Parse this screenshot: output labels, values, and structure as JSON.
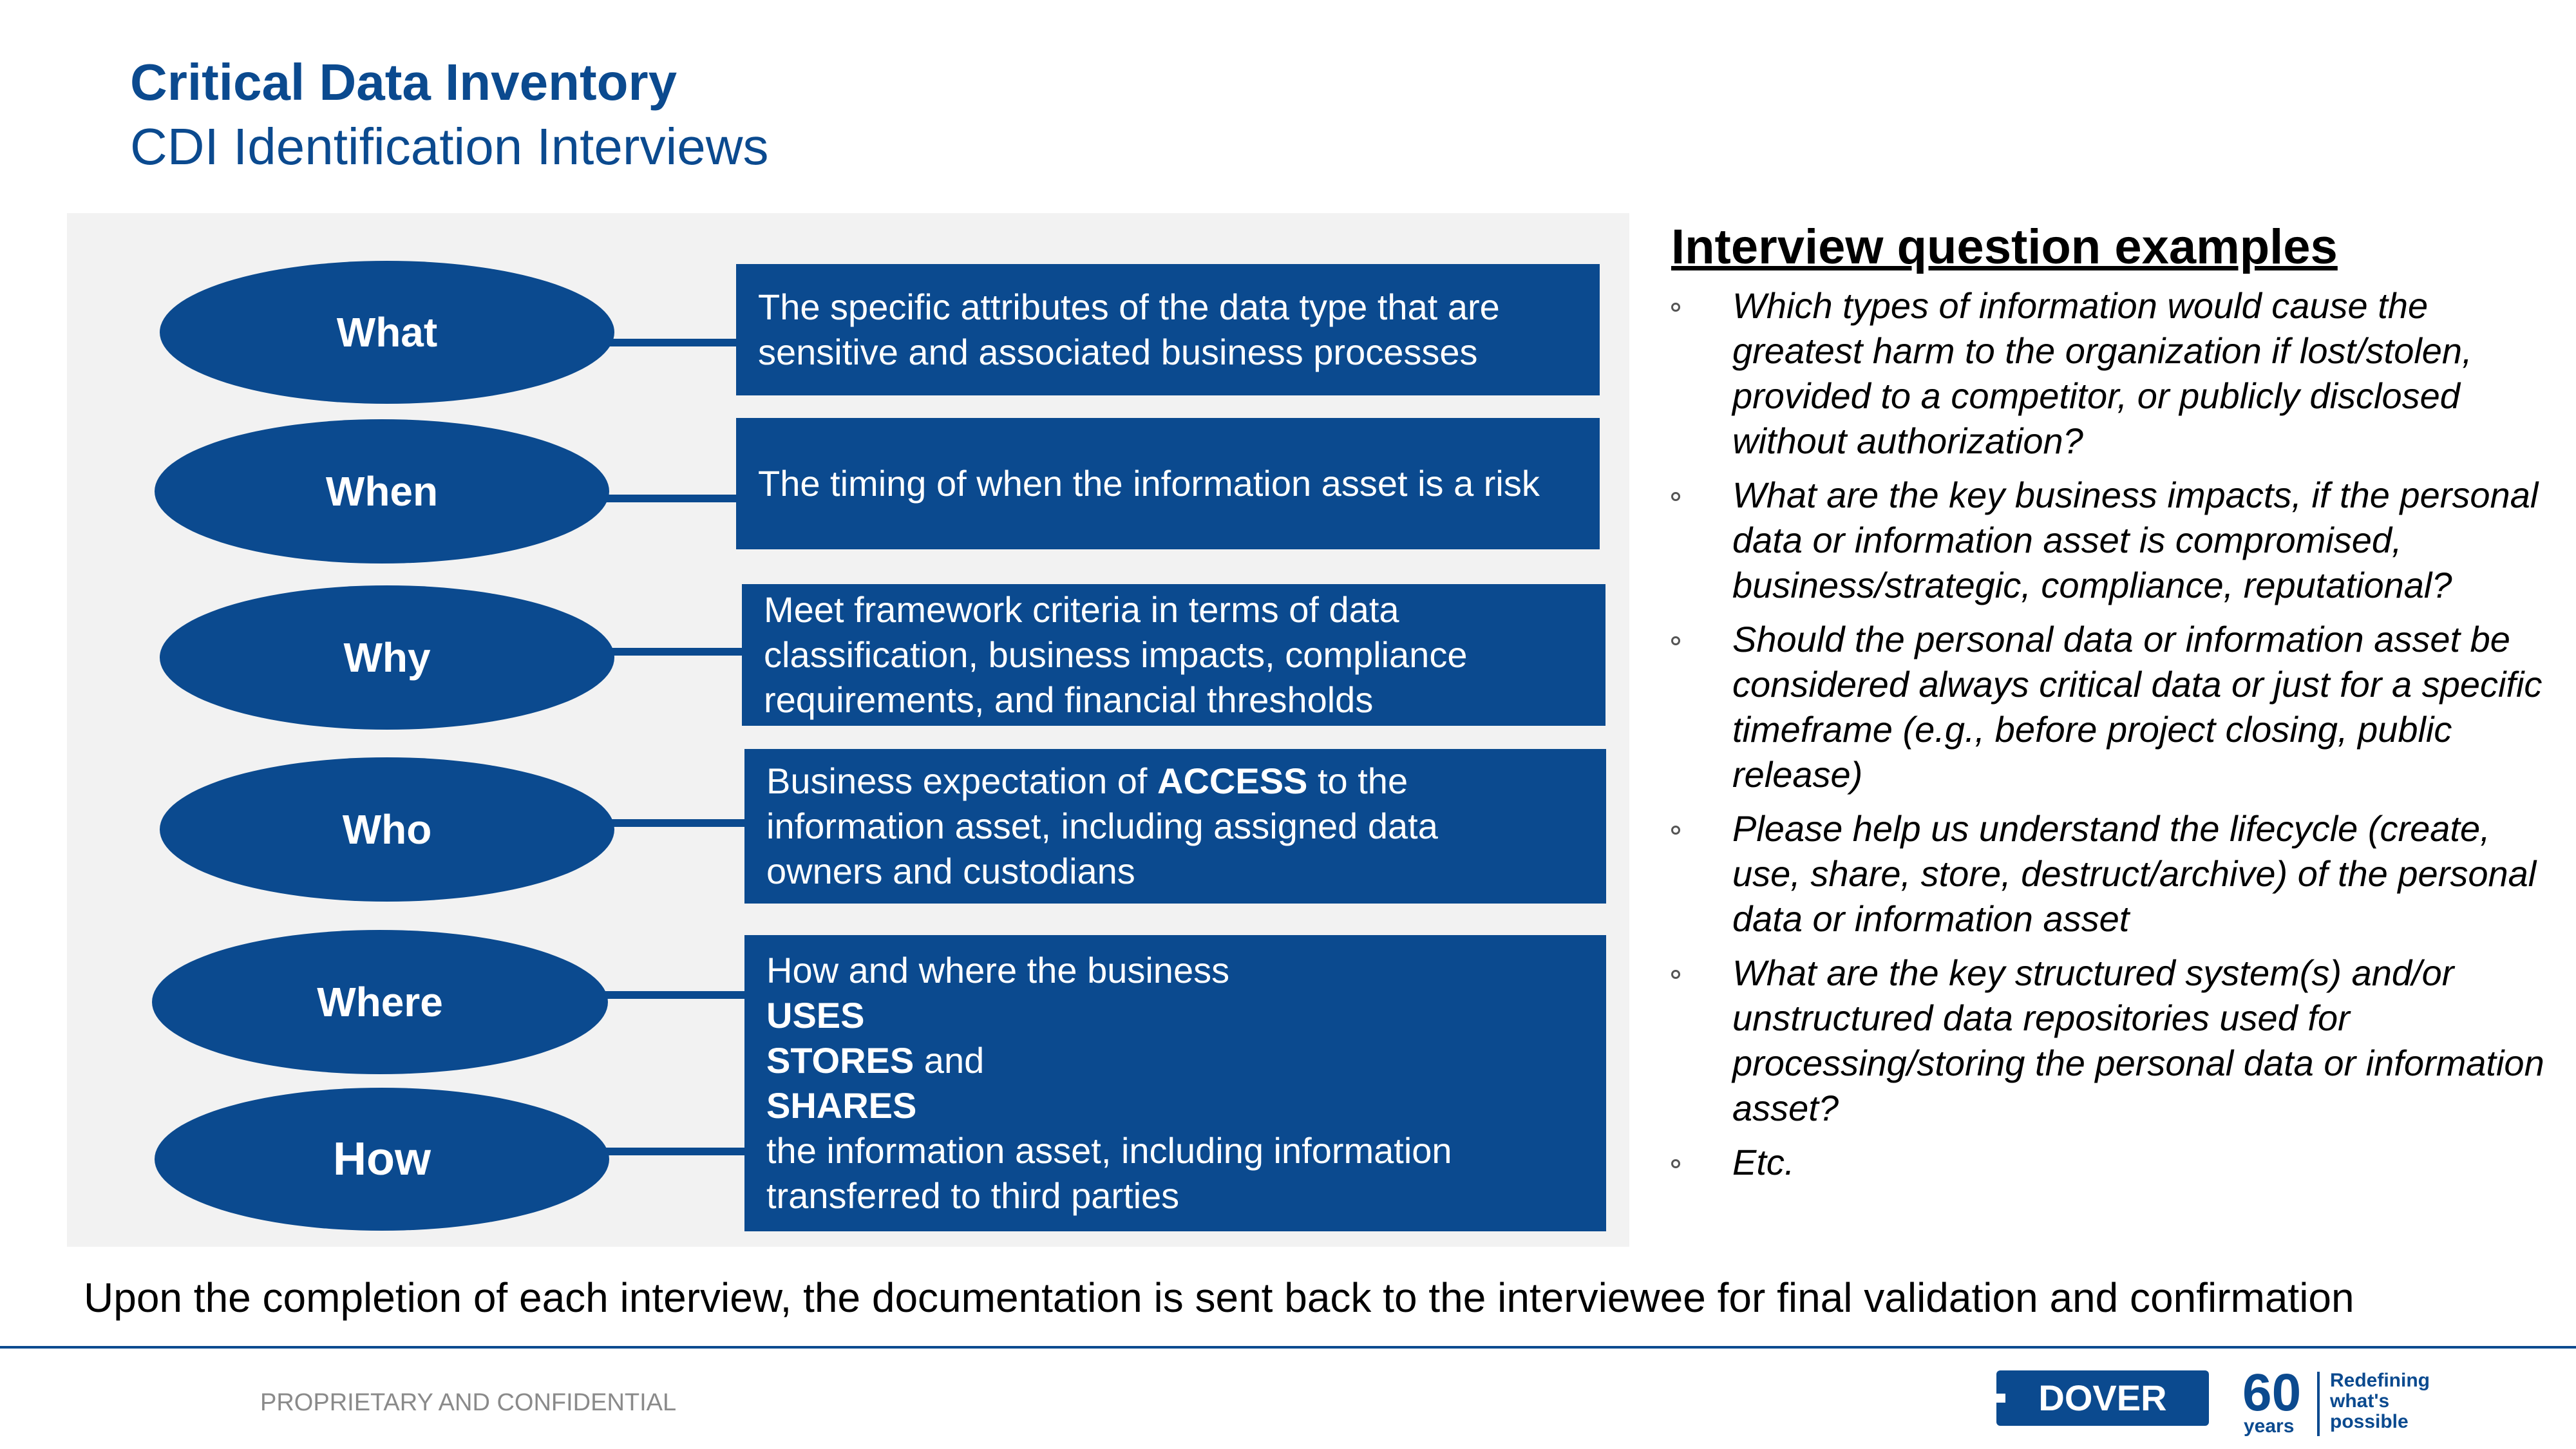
{
  "header": {
    "title": "Critical Data Inventory",
    "subtitle": "CDI Identification Interviews"
  },
  "diagram": {
    "rows": [
      {
        "label": "What",
        "description_lines": [
          "The specific attributes of the data type that are",
          "sensitive and associated business processes"
        ]
      },
      {
        "label": "When",
        "description_lines": [
          "The timing of when the information asset is a risk"
        ]
      },
      {
        "label": "Why",
        "description_lines": [
          "Meet framework criteria in terms of data",
          "classification, business impacts, compliance",
          "requirements, and financial thresholds"
        ]
      },
      {
        "label": "Who",
        "description_pre": "Business expectation of ",
        "description_bold": "ACCESS",
        "description_post": " to the",
        "description_lines": [
          "information asset, including assigned data",
          "owners and custodians"
        ]
      },
      {
        "label": "Where"
      },
      {
        "label": "How"
      }
    ],
    "where_how_box": {
      "line1": "How and where the business",
      "uses": "USES",
      "stores": "STORES",
      "stores_suffix": " and",
      "shares": "SHARES",
      "line5": "the information asset, including information",
      "line6": "transferred to third parties"
    }
  },
  "questions": {
    "heading": "Interview question examples",
    "items": [
      "Which types of information would cause the greatest harm to the organization if lost/stolen, provided to a competitor, or publicly disclosed without authorization?",
      "What are the key business impacts, if the personal data or information asset is compromised, business/strategic, compliance, reputational?",
      "Should the personal data or information asset be considered always critical data or just for a specific timeframe (e.g., before project closing, public release)",
      "Please help us understand the lifecycle (create, use, share, store, destruct/archive) of the personal data or information asset",
      "What are the key structured system(s) and/or unstructured data repositories used for processing/storing the personal data or information asset?",
      "Etc."
    ]
  },
  "conclusion": "Upon the completion of each interview, the documentation is sent back to the interviewee for final validation and confirmation",
  "footer": {
    "confidential": "PROPRIETARY AND CONFIDENTIAL",
    "logo_text": "DOVER",
    "anniversary_number": "60",
    "anniversary_unit": "years",
    "tagline_lines": [
      "Redefining",
      "what's",
      "possible"
    ]
  },
  "colors": {
    "brand_blue": "#0b4a8f",
    "panel_gray": "#f2f2f2"
  }
}
